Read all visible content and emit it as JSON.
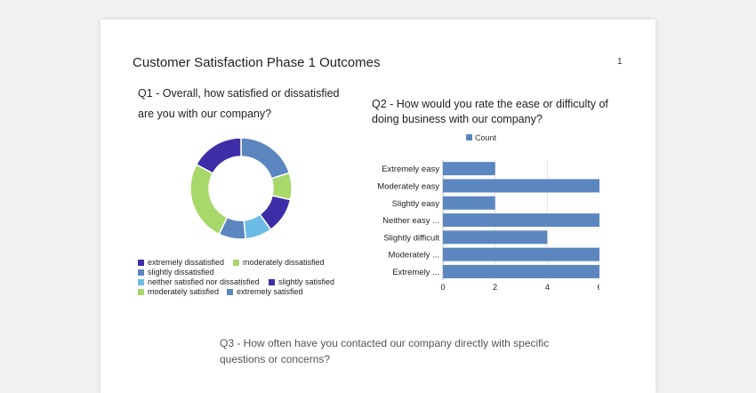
{
  "document": {
    "title": "Customer Satisfaction Phase 1 Outcomes",
    "page_number": "1"
  },
  "q1": {
    "question": "Q1 - Overall, how satisfied or dissatisfied are you with our company?"
  },
  "q2": {
    "question": "Q2 - How would you rate the ease or difficulty of doing business with our company?"
  },
  "q3": {
    "question": "Q3 - How often have you contacted our company directly with specific questions or concerns?"
  },
  "colors": {
    "dark_purple": "#3d2ea8",
    "light_green": "#a8d86a",
    "steel_blue": "#5b86bf",
    "light_blue": "#6cbce8",
    "bar_blue": "#5b86bf"
  },
  "chart_data": [
    {
      "type": "pie",
      "variant": "donut",
      "categories": [
        "extremely satisfied",
        "moderately dissatisfied",
        "slightly satisfied",
        "neither satisfied nor dissatisfied",
        "slightly dissatisfied",
        "moderately satisfied",
        "extremely dissatisfied"
      ],
      "values": [
        7,
        3,
        4,
        3,
        3,
        9,
        6
      ],
      "colors": [
        "#5b86bf",
        "#a8d86a",
        "#3d2ea8",
        "#6cbce8",
        "#5b86bf",
        "#a8d86a",
        "#3d2ea8"
      ],
      "legend": [
        {
          "label": "extremely dissatisfied",
          "color": "#3d2ea8"
        },
        {
          "label": "moderately dissatisfied",
          "color": "#a8d86a"
        },
        {
          "label": "slightly dissatisfied",
          "color": "#5b86bf"
        },
        {
          "label": "neither satisfied nor dissatisfied",
          "color": "#6cbce8"
        },
        {
          "label": "slightly satisfied",
          "color": "#3d2ea8"
        },
        {
          "label": "moderately satisfied",
          "color": "#a8d86a"
        },
        {
          "label": "extremely satisfied",
          "color": "#5b86bf"
        }
      ],
      "legend_position": "bottom"
    },
    {
      "type": "bar",
      "orientation": "horizontal",
      "categories": [
        "Extremely easy",
        "Moderately easy",
        "Slightly easy",
        "Neither easy ...",
        "Slightly difficult",
        "Moderately ...",
        "Extremely ..."
      ],
      "series": [
        {
          "name": "Count",
          "values": [
            2,
            6,
            2,
            6,
            4,
            6,
            6
          ]
        }
      ],
      "xlim": [
        0,
        6
      ],
      "x_ticks": [
        "0",
        "2",
        "4",
        "6"
      ],
      "legend_position": "top",
      "grid": true
    }
  ]
}
